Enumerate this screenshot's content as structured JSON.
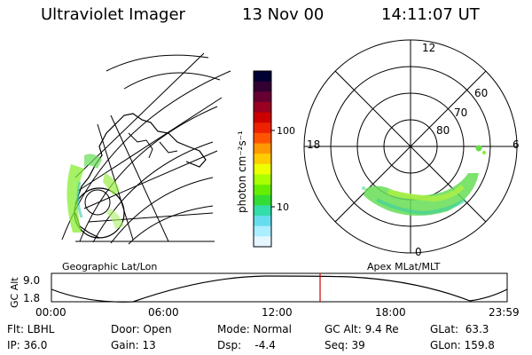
{
  "header": {
    "instrument": "Ultraviolet Imager",
    "date": "13 Nov 00",
    "time": "14:11:07 UT"
  },
  "colorbar": {
    "label": "photon cm⁻²s⁻¹",
    "ticks": [
      "100",
      "10"
    ],
    "colors": [
      "#000033",
      "#330033",
      "#660033",
      "#990022",
      "#cc0000",
      "#ee2200",
      "#ff5500",
      "#ff9900",
      "#ffcc00",
      "#eeff00",
      "#aaff00",
      "#66ee00",
      "#33dd33",
      "#33ddaa",
      "#66ddee",
      "#aaeeff",
      "#e6f6ff"
    ]
  },
  "geo_panel": {
    "label": "Geographic Lat/Lon"
  },
  "polar_panel": {
    "label": "Apex MLat/MLT",
    "mlt_labels": {
      "top": "12",
      "left": "18",
      "right": "6",
      "bottom": "0"
    },
    "lat_labels": [
      "60",
      "70",
      "80"
    ]
  },
  "gc_plot": {
    "ylabel": "GC Alt",
    "yticks": [
      "9.0",
      "1.8"
    ],
    "xticks": [
      "00:00",
      "06:00",
      "12:00",
      "18:00",
      "23:59"
    ],
    "marker_color": "#cc0000"
  },
  "info": {
    "flt": "Flt: LBHL",
    "ip": "IP: 36.0",
    "door": "Door: Open",
    "gain": "Gain: 13",
    "mode": "Mode: Normal",
    "dsp": "Dsp:    -4.4",
    "gc_alt": "GC Alt: 9.4 Re",
    "seq": "Seq: 39",
    "glat": "GLat:  63.3",
    "glon": "GLon: 159.8"
  }
}
